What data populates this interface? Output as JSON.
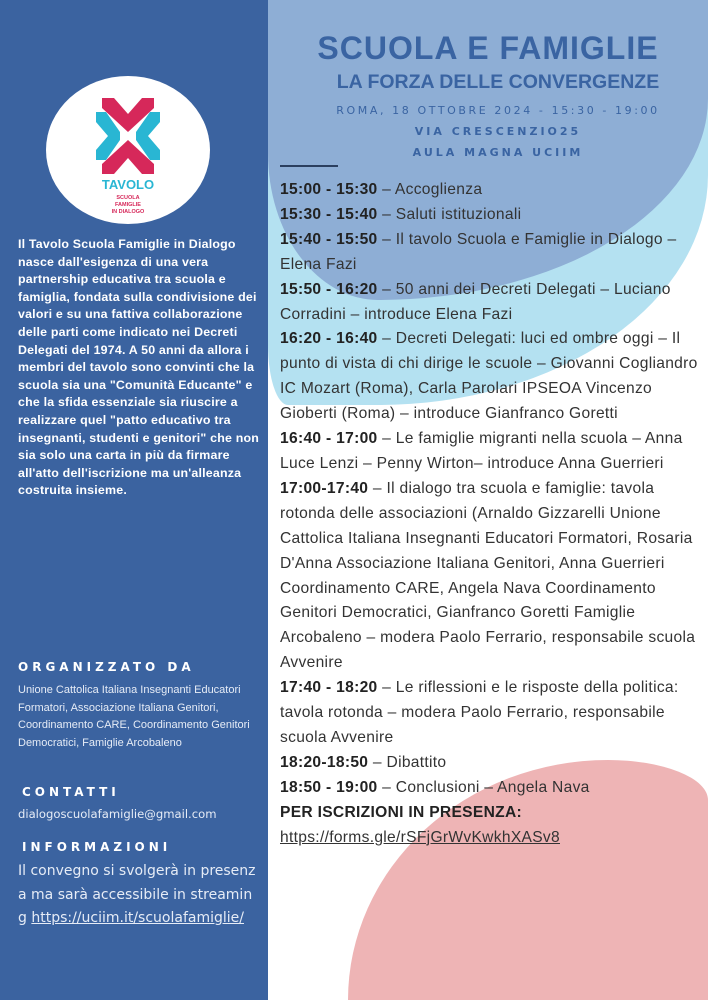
{
  "logo": {
    "title": "TAVOLO",
    "subtitle": [
      "SCUOLA",
      "FAMIGLIE",
      "IN DIALOGO"
    ]
  },
  "intro": "Il Tavolo Scuola Famiglie in Dialogo nasce dall'esigenza di una vera partnership educativa tra scuola e famiglia, fondata sulla condivisione dei valori e su una fattiva collaborazione delle parti come indicato nei Decreti Delegati del 1974. A 50 anni da allora i membri del tavolo sono convinti che la scuola sia una \"Comunità Educante\" e che la sfida essenziale sia riuscire a realizzare quel \"patto educativo tra insegnanti, studenti e genitori\" che non sia solo una carta in più da firmare all'atto dell'iscrizione ma un'alleanza costruita insieme.",
  "organizzato": {
    "heading": "ORGANIZZATO DA",
    "text": "Unione Cattolica Italiana Insegnanti Educatori Formatori, Associazione Italiana Genitori,  Coordinamento CARE,  Coordinamento Genitori Democratici, Famiglie Arcobaleno"
  },
  "contatti": {
    "heading": "CONTATTI",
    "email": "dialogoscuolafamiglie@gmail.com"
  },
  "informazioni": {
    "heading": "INFORMAZIONI",
    "text": "Il convegno si svolgerà in presenza ma sarà accessibile in streaming",
    "link": "https://uciim.it/scuolafamiglie/"
  },
  "header": {
    "title": "SCUOLA E FAMIGLIE",
    "subtitle": "LA FORZA DELLE CONVERGENZE",
    "date": "ROMA, 18 OTTOBRE 2024 - 15:30 - 19:00",
    "address": "VIA CRESCENZIO25",
    "room": "AULA MAGNA UCIIM"
  },
  "schedule": [
    {
      "time": "15:00 - 15:30",
      "text": " – Accoglienza"
    },
    {
      "time": "15:30 - 15:40",
      "text": " – Saluti istituzionali"
    },
    {
      "time": "15:40 - 15:50",
      "text": " – Il tavolo Scuola e Famiglie in Dialogo – Elena Fazi"
    },
    {
      "time": "15:50 - 16:20",
      "text": " – 50 anni dei Decreti Delegati – Luciano Corradini – introduce Elena Fazi"
    },
    {
      "time": "16:20 - 16:40",
      "text": " – Decreti Delegati: luci ed ombre oggi –  Il punto di vista di chi dirige le scuole – Giovanni Cogliandro IC Mozart (Roma), Carla Parolari IPSEOA Vincenzo Gioberti (Roma) – introduce Gianfranco Goretti"
    },
    {
      "time": "16:40 - 17:00",
      "text": " – Le famiglie migranti nella scuola – Anna Luce Lenzi – Penny Wirton– introduce Anna Guerrieri"
    },
    {
      "time": "17:00-17:40",
      "text": " – Il dialogo tra scuola e famiglie: tavola rotonda delle associazioni (Arnaldo Gizzarelli Unione Cattolica Italiana Insegnanti Educatori Formatori, Rosaria D'Anna Associazione Italiana Genitori, Anna Guerrieri Coordinamento CARE, Angela Nava Coordinamento Genitori Democratici, Gianfranco Goretti Famiglie Arcobaleno – modera Paolo Ferrario, responsabile scuola Avvenire"
    },
    {
      "time": "17:40 - 18:20",
      "text": " – Le riflessioni e le risposte della politica: tavola rotonda – modera Paolo Ferrario, responsabile scuola Avvenire"
    },
    {
      "time": "18:20-18:50",
      "text": " – Dibattito"
    },
    {
      "time": "18:50 - 19:00",
      "text": " – Conclusioni – Angela Nava"
    }
  ],
  "iscrizioni": {
    "label": "PER ISCRIZIONI IN PRESENZA:",
    "link": "https://forms.gle/rSFjGrWvKwkhXASv8"
  },
  "colors": {
    "left_panel": "#3b63a0",
    "title": "#3a64a2",
    "circle_blue": "#8eaed5",
    "circle_cyan": "#b4e1f1",
    "circle_pink": "#eeb4b5",
    "logo_red": "#d6285a",
    "logo_cyan": "#29b6d3"
  }
}
